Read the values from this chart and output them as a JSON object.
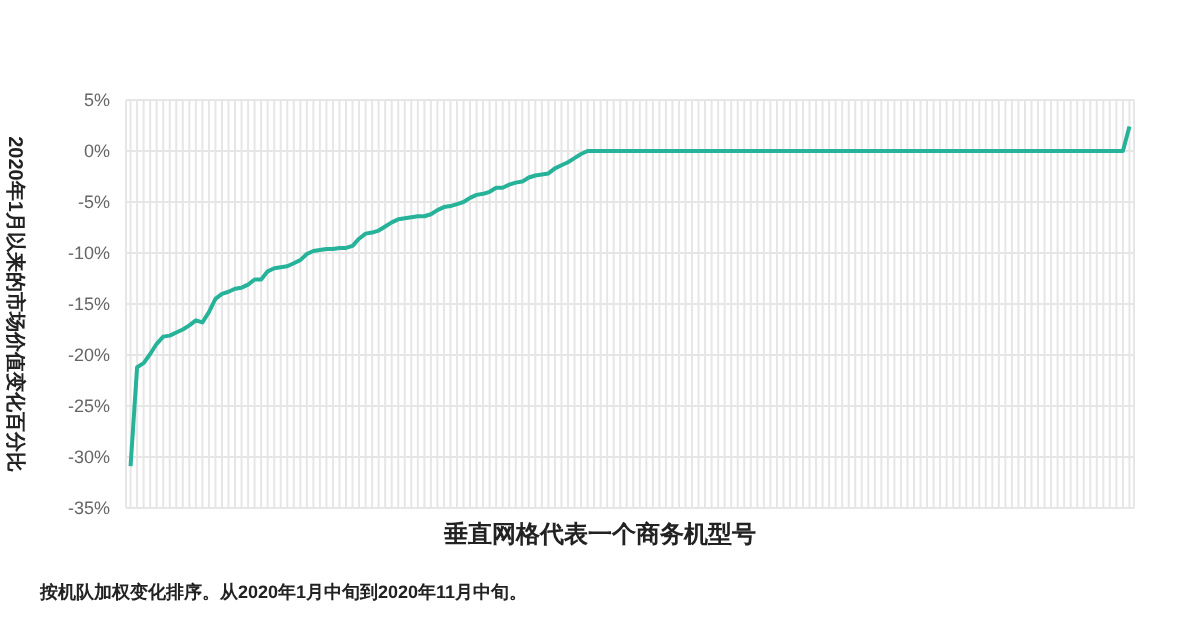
{
  "chart_data": {
    "type": "line",
    "xlabel": "垂直网格代表一个商务机型号",
    "ylabel": "2020年1月以来的市场价值变化百分比",
    "annotations": [
      "按机队加权变化排序。从2020年1月中旬到2020年11月中旬。"
    ],
    "categories": [
      null,
      null,
      null,
      null,
      null,
      null,
      null,
      null,
      null,
      null,
      null,
      null,
      null,
      null,
      null,
      null,
      null,
      null,
      null,
      null,
      null,
      null,
      null,
      null,
      null,
      null,
      null,
      null,
      null,
      null,
      null,
      null,
      null,
      null,
      null,
      null,
      null,
      null,
      null,
      null,
      null,
      null,
      null,
      null,
      null,
      null,
      null,
      null,
      null,
      null,
      null,
      null,
      null,
      null,
      null,
      null,
      null,
      null,
      null,
      null,
      null,
      null,
      null,
      null,
      null,
      null,
      null,
      null,
      null,
      null,
      null,
      null,
      null,
      null,
      null,
      null,
      null,
      null,
      null,
      null,
      null,
      null,
      null,
      null,
      null,
      null,
      null,
      null,
      null,
      null,
      null,
      null,
      null,
      null,
      null,
      null,
      null,
      null,
      null,
      null,
      null,
      null,
      null,
      null,
      null,
      null,
      null,
      null,
      null,
      null,
      null,
      null,
      null,
      null,
      null,
      null,
      null,
      null,
      null,
      null,
      null,
      null,
      null,
      null,
      null,
      null,
      null,
      null,
      null,
      null,
      null,
      null,
      null,
      null,
      null,
      null,
      null,
      null,
      null,
      null,
      null,
      null,
      null,
      null,
      null,
      null,
      null,
      null,
      null,
      null,
      null,
      null,
      null,
      null
    ],
    "series": [
      {
        "color": "#26b39a",
        "values": [
          -30.9,
          -21.2,
          -20.8,
          -19.9,
          -18.9,
          -18.2,
          -18.1,
          -17.8,
          -17.5,
          -17.1,
          -16.6,
          -16.8,
          -15.8,
          -14.5,
          -14.0,
          -13.8,
          -13.5,
          -13.4,
          -13.1,
          -12.6,
          -12.6,
          -11.8,
          -11.5,
          -11.4,
          -11.3,
          -11.0,
          -10.7,
          -10.1,
          -9.8,
          -9.7,
          -9.6,
          -9.6,
          -9.5,
          -9.5,
          -9.3,
          -8.6,
          -8.1,
          -8.0,
          -7.8,
          -7.4,
          -7.0,
          -6.7,
          -6.6,
          -6.5,
          -6.4,
          -6.4,
          -6.2,
          -5.8,
          -5.5,
          -5.4,
          -5.2,
          -5.0,
          -4.6,
          -4.3,
          -4.2,
          -4.0,
          -3.6,
          -3.6,
          -3.3,
          -3.1,
          -3.0,
          -2.6,
          -2.4,
          -2.3,
          -2.2,
          -1.7,
          -1.4,
          -1.1,
          -0.7,
          -0.3,
          0,
          0,
          0,
          0,
          0,
          0,
          0,
          0,
          0,
          0,
          0,
          0,
          0,
          0,
          0,
          0,
          0,
          0,
          0,
          0,
          0,
          0,
          0,
          0,
          0,
          0,
          0,
          0,
          0,
          0,
          0,
          0,
          0,
          0,
          0,
          0,
          0,
          0,
          0,
          0,
          0,
          0,
          0,
          0,
          0,
          0,
          0,
          0,
          0,
          0,
          0,
          0,
          0,
          0,
          0,
          0,
          0,
          0,
          0,
          0,
          0,
          0,
          0,
          0,
          0,
          0,
          0,
          0,
          0,
          0,
          0,
          0,
          0,
          0,
          0,
          0,
          0,
          0,
          0,
          0,
          0,
          0,
          0,
          2.4
        ]
      }
    ],
    "ylim": [
      -35,
      5
    ],
    "yticks": [
      {
        "value": -35,
        "label": "-35%"
      },
      {
        "value": -30,
        "label": "-30%"
      },
      {
        "value": -25,
        "label": "-25%"
      },
      {
        "value": -20,
        "label": "-20%"
      },
      {
        "value": -15,
        "label": "-15%"
      },
      {
        "value": -10,
        "label": "-10%"
      },
      {
        "value": -5,
        "label": "-5%"
      },
      {
        "value": 0,
        "label": "0%"
      },
      {
        "value": 5,
        "label": "5%"
      }
    ],
    "grid": true,
    "marker": "none",
    "line_style": "solid"
  }
}
